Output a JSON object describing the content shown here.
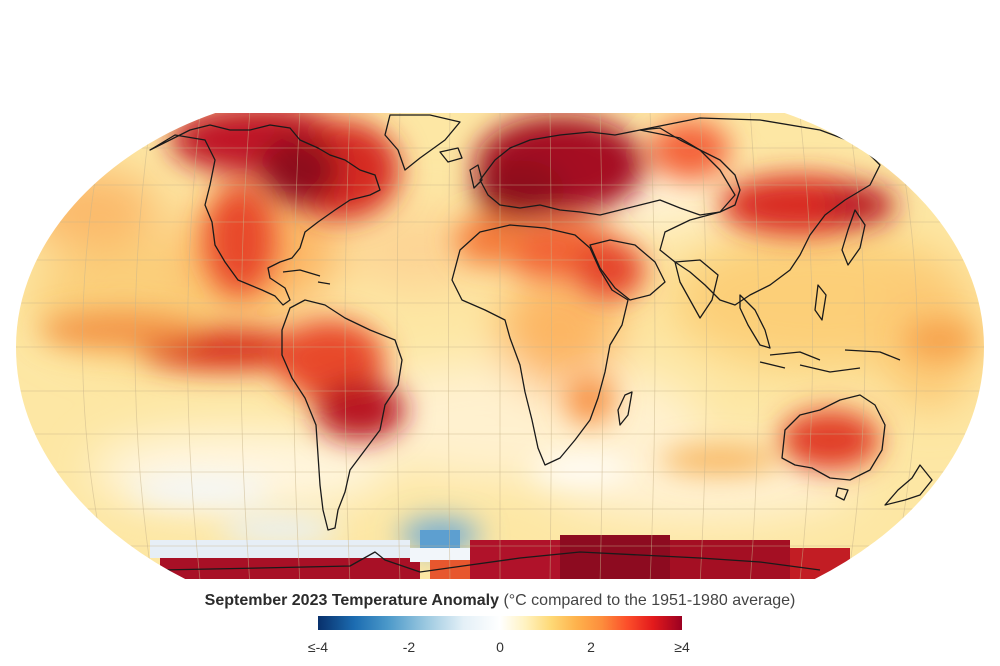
{
  "caption": {
    "title": "September 2023 Temperature Anomaly",
    "subtitle": "(°C compared to the 1951-1980 average)"
  },
  "legend": {
    "ticks": [
      "≤-4",
      "-2",
      "0",
      "2",
      "≥4"
    ],
    "colors": {
      "cold_extreme": "#08306b",
      "neutral": "#ffffff",
      "warm_mid": "#fd8d3c",
      "hot_extreme": "#9b0021"
    }
  },
  "map": {
    "projection": "robinson",
    "graticule": true,
    "base_color": "#fde7a4"
  }
}
